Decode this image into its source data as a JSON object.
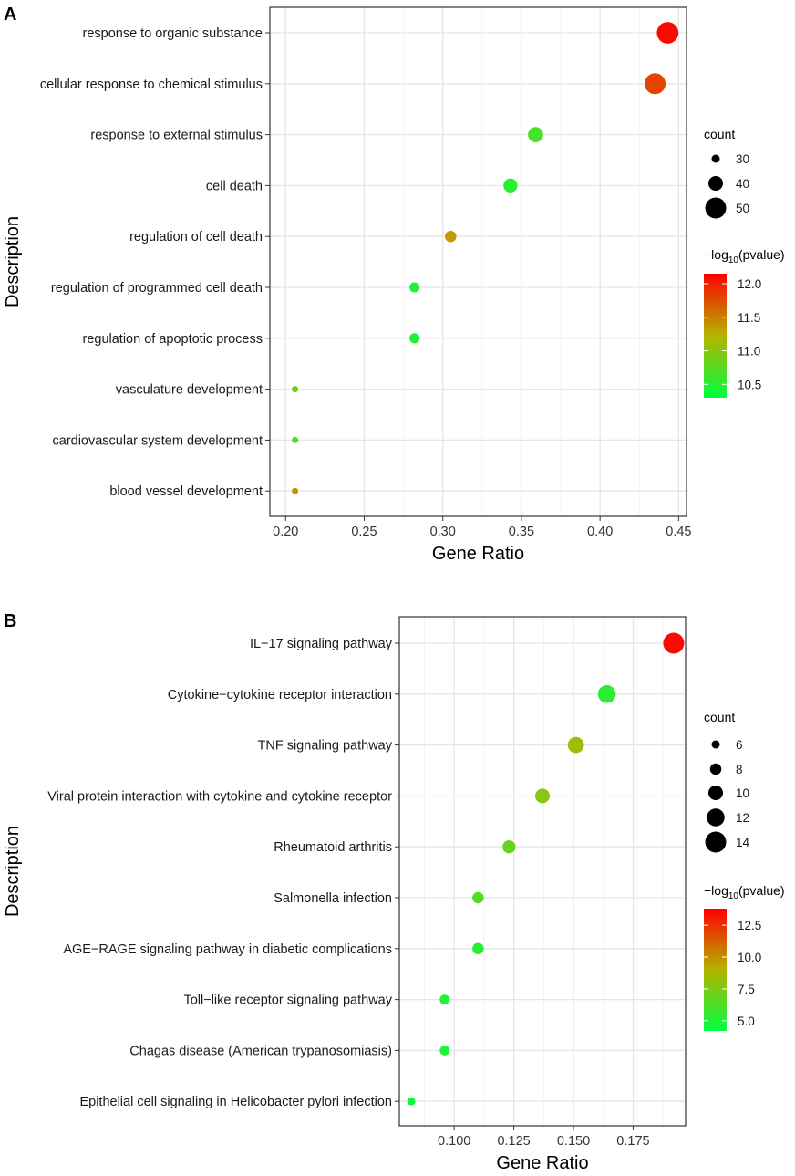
{
  "chart_data": [
    {
      "panel": "A",
      "type": "scatter",
      "xlabel": "Gene Ratio",
      "ylabel": "Description",
      "xlim": [
        0.19,
        0.455
      ],
      "xticks": [
        "0.20",
        "0.25",
        "0.30",
        "0.35",
        "0.40",
        "0.45"
      ],
      "xtick_values": [
        0.2,
        0.25,
        0.3,
        0.35,
        0.4,
        0.45
      ],
      "points": [
        {
          "label": "response to organic substance",
          "x": 0.443,
          "count": 51,
          "pvalue": 12.1
        },
        {
          "label": "cellular response to chemical stimulus",
          "x": 0.435,
          "count": 50,
          "pvalue": 11.8
        },
        {
          "label": "response to external stimulus",
          "x": 0.359,
          "count": 41,
          "pvalue": 10.65
        },
        {
          "label": "cell death",
          "x": 0.343,
          "count": 39,
          "pvalue": 10.5
        },
        {
          "label": "regulation of cell death",
          "x": 0.305,
          "count": 35,
          "pvalue": 11.35
        },
        {
          "label": "regulation of programmed cell death",
          "x": 0.282,
          "count": 33,
          "pvalue": 10.45
        },
        {
          "label": "regulation of apoptotic process",
          "x": 0.282,
          "count": 33,
          "pvalue": 10.45
        },
        {
          "label": "vasculature development",
          "x": 0.206,
          "count": 24,
          "pvalue": 10.85
        },
        {
          "label": "cardiovascular system development",
          "x": 0.206,
          "count": 24,
          "pvalue": 10.7
        },
        {
          "label": "blood vessel development",
          "x": 0.206,
          "count": 24,
          "pvalue": 11.4
        }
      ],
      "size_legend": {
        "title": "count",
        "values": [
          30,
          40,
          50
        ],
        "labels": [
          "30",
          "40",
          "50"
        ]
      },
      "color_legend": {
        "title_main": "−log",
        "title_sub": "10",
        "title_end": "(pvalue)",
        "min": 10.3,
        "max": 12.15,
        "ticks": [
          10.5,
          11.0,
          11.5,
          12.0
        ],
        "tick_labels": [
          "10.5",
          "11.0",
          "11.5",
          "12.0"
        ]
      }
    },
    {
      "panel": "B",
      "type": "scatter",
      "xlabel": "Gene Ratio",
      "ylabel": "Description",
      "xlim": [
        0.077,
        0.197
      ],
      "xticks": [
        "0.100",
        "0.125",
        "0.150",
        "0.175"
      ],
      "xtick_values": [
        0.1,
        0.125,
        0.15,
        0.175
      ],
      "points": [
        {
          "label": "IL−17 signaling pathway",
          "x": 0.192,
          "count": 14,
          "pvalue": 13.5
        },
        {
          "label": "Cytokine−cytokine receptor interaction",
          "x": 0.164,
          "count": 12,
          "pvalue": 5.3
        },
        {
          "label": "TNF signaling pathway",
          "x": 0.151,
          "count": 11,
          "pvalue": 8.5
        },
        {
          "label": "Viral protein interaction with cytokine and cytokine receptor",
          "x": 0.137,
          "count": 10,
          "pvalue": 7.8
        },
        {
          "label": "Rheumatoid arthritis",
          "x": 0.123,
          "count": 9,
          "pvalue": 6.9
        },
        {
          "label": "Salmonella infection",
          "x": 0.11,
          "count": 8,
          "pvalue": 6.4
        },
        {
          "label": "AGE−RAGE signaling pathway in diabetic complications",
          "x": 0.11,
          "count": 8,
          "pvalue": 5.2
        },
        {
          "label": "Toll−like receptor signaling pathway",
          "x": 0.096,
          "count": 7,
          "pvalue": 4.9
        },
        {
          "label": "Chagas disease (American trypanosomiasis)",
          "x": 0.096,
          "count": 7,
          "pvalue": 4.9
        },
        {
          "label": "Epithelial cell signaling in Helicobacter pylori infection",
          "x": 0.082,
          "count": 6,
          "pvalue": 4.6
        }
      ],
      "size_legend": {
        "title": "count",
        "values": [
          6,
          8,
          10,
          12,
          14
        ],
        "labels": [
          "6",
          "8",
          "10",
          "12",
          "14"
        ]
      },
      "color_legend": {
        "title_main": "−log",
        "title_sub": "10",
        "title_end": "(pvalue)",
        "min": 4.2,
        "max": 13.8,
        "ticks": [
          5.0,
          7.5,
          10.0,
          12.5
        ],
        "tick_labels": [
          "5.0",
          "7.5",
          "10.0",
          "12.5"
        ]
      }
    }
  ],
  "colors": {
    "low": "#00ff3f",
    "mid": "#b4b400",
    "high": "#ff0000",
    "grid": "#ebebeb",
    "border": "#333333"
  }
}
